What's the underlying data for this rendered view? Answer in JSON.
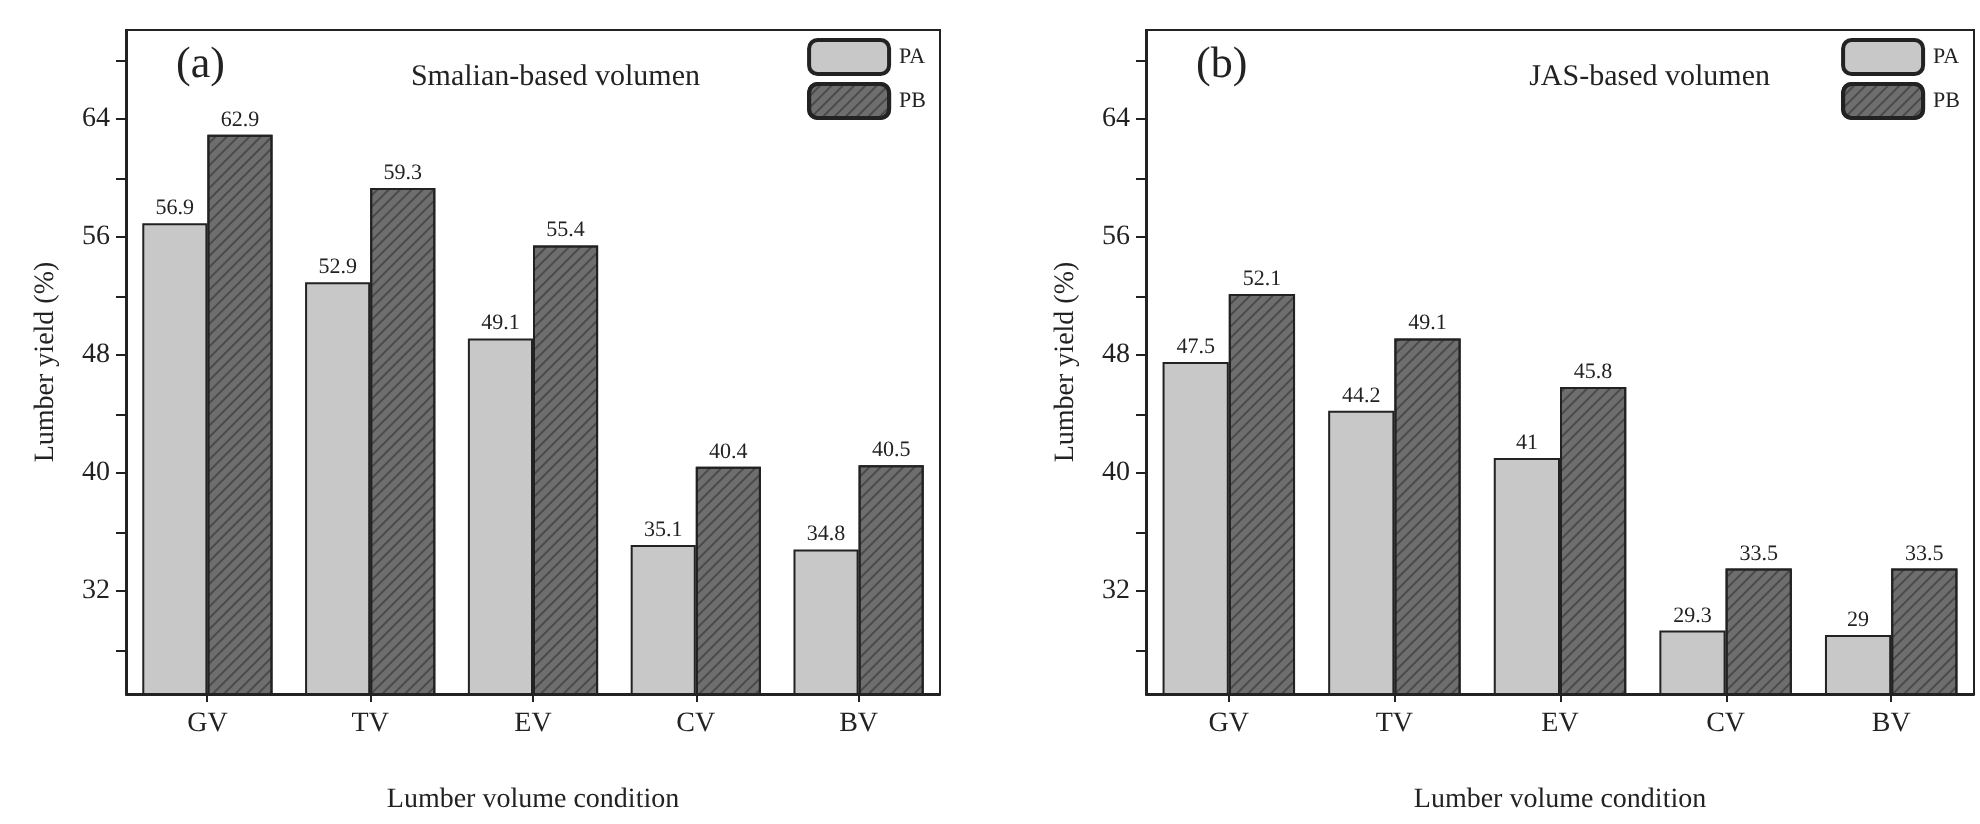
{
  "chart_data": [
    {
      "type": "bar",
      "title": "Smalian-based volumen",
      "annotations": [
        "(a)"
      ],
      "xlabel": "Lumber volume condition",
      "ylabel": "Lumber yield (%)",
      "categories": [
        "GV",
        "TV",
        "EV",
        "CV",
        "BV"
      ],
      "series": [
        {
          "name": "PA",
          "color": "#c8c8c8",
          "values": [
            56.9,
            52.9,
            49.1,
            35.1,
            34.8
          ]
        },
        {
          "name": "PB",
          "color": "#6e6e6e",
          "values": [
            62.9,
            59.3,
            55.4,
            40.4,
            40.5
          ]
        }
      ],
      "ylim": [
        25,
        70
      ],
      "yticks": [
        {
          "value": 28,
          "label": null
        },
        32,
        {
          "value": 36,
          "label": null
        },
        40,
        {
          "value": 44,
          "label": null
        },
        48,
        {
          "value": 52,
          "label": null
        },
        56,
        {
          "value": 60,
          "label": null
        },
        64,
        {
          "value": 68,
          "label": null
        }
      ],
      "data_labels": true,
      "legend": "top right",
      "grid": false
    },
    {
      "type": "bar",
      "title": "JAS-based volumen",
      "annotations": [
        "(b)"
      ],
      "xlabel": "Lumber volume condition",
      "ylabel": "Lumber yield (%)",
      "categories": [
        "GV",
        "TV",
        "EV",
        "CV",
        "BV"
      ],
      "series": [
        {
          "name": "PA",
          "color": "#c8c8c8",
          "values": [
            47.5,
            44.2,
            41,
            29.3,
            29
          ]
        },
        {
          "name": "PB",
          "color": "#6e6e6e",
          "values": [
            52.1,
            49.1,
            45.8,
            33.5,
            33.5
          ]
        }
      ],
      "ylim": [
        25,
        70
      ],
      "yticks": [
        {
          "value": 28,
          "label": null
        },
        32,
        {
          "value": 36,
          "label": null
        },
        40,
        {
          "value": 44,
          "label": null
        },
        48,
        {
          "value": 52,
          "label": null
        },
        56,
        {
          "value": 60,
          "label": null
        },
        64,
        {
          "value": 68,
          "label": null
        }
      ],
      "data_labels": true,
      "legend": "top right",
      "grid": false
    }
  ]
}
